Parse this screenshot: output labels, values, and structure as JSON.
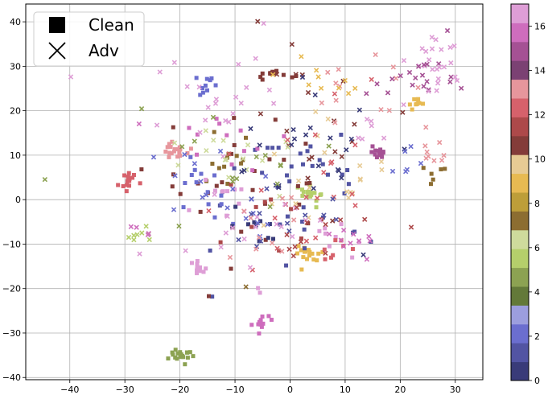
{
  "chart_data": {
    "type": "scatter",
    "title": "",
    "xlabel": "",
    "ylabel": "",
    "xlim": [
      -48,
      35
    ],
    "ylim": [
      -40.5,
      44
    ],
    "xticks": [
      -40,
      -30,
      -20,
      -10,
      0,
      10,
      20,
      30
    ],
    "yticks": [
      -40,
      -30,
      -20,
      -10,
      0,
      10,
      20,
      30,
      40
    ],
    "grid": true,
    "legend": {
      "placement": "top-left",
      "entries": [
        {
          "label": "Clean",
          "marker": "square"
        },
        {
          "label": "Adv",
          "marker": "x"
        }
      ]
    },
    "colorbar": {
      "cmap": "tab20b",
      "range": [
        0,
        17
      ],
      "ticks": [
        0,
        2,
        4,
        6,
        8,
        10,
        12,
        14,
        16
      ],
      "colors": [
        "#393b79",
        "#5254a3",
        "#6b6ecf",
        "#9c9ede",
        "#637939",
        "#8ca252",
        "#b5cf6b",
        "#cedb9c",
        "#8c6d31",
        "#bd9e39",
        "#e7ba52",
        "#e7cb94",
        "#843c39",
        "#ad494a",
        "#d6616b",
        "#e7969c",
        "#7b4173",
        "#a55194",
        "#ce6dbd",
        "#de9ed6"
      ]
    },
    "clusters": [
      {
        "marker": "square",
        "cls": 12.5,
        "cx": -29.5,
        "cy": 4.5,
        "sx": 0.8,
        "sy": 1.3,
        "n": 16
      },
      {
        "marker": "square",
        "cls": 4.5,
        "cx": -19.5,
        "cy": -35,
        "sx": 1.0,
        "sy": 0.8,
        "n": 20
      },
      {
        "marker": "square",
        "cls": 16.5,
        "cx": -16.5,
        "cy": -15.5,
        "sx": 1.4,
        "sy": 0.8,
        "n": 12
      },
      {
        "marker": "square",
        "cls": 15.5,
        "cx": -5.5,
        "cy": -27.5,
        "sx": 0.9,
        "sy": 1.4,
        "n": 12
      },
      {
        "marker": "square",
        "cls": 16.5,
        "cx": -5.5,
        "cy": -21,
        "sx": 0.2,
        "sy": 1.5,
        "n": 2
      },
      {
        "marker": "square",
        "cls": 13.5,
        "cx": -21,
        "cy": 11,
        "sx": 1.2,
        "sy": 0.9,
        "n": 18
      },
      {
        "marker": "square",
        "cls": 14.5,
        "cx": 16,
        "cy": 11,
        "sx": 0.8,
        "sy": 0.8,
        "n": 14
      },
      {
        "marker": "square",
        "cls": 8.5,
        "cx": 23,
        "cy": 22.5,
        "sx": 0.7,
        "sy": 0.8,
        "n": 10
      },
      {
        "marker": "square",
        "cls": 10.5,
        "cx": -2.5,
        "cy": 28.5,
        "sx": 1.3,
        "sy": 0.8,
        "n": 14
      },
      {
        "marker": "square",
        "cls": 2.5,
        "cx": -15,
        "cy": 25,
        "sx": 1.0,
        "sy": 1.3,
        "n": 10
      },
      {
        "marker": "square",
        "cls": 5.5,
        "cx": 4,
        "cy": 1,
        "sx": 1.2,
        "sy": 1.3,
        "n": 18
      },
      {
        "marker": "square",
        "cls": 8.5,
        "cx": 3,
        "cy": -12,
        "sx": 1.5,
        "sy": 1.2,
        "n": 18
      },
      {
        "marker": "square",
        "cls": 1.5,
        "cx": 1,
        "cy": 1,
        "sx": 8,
        "sy": 8,
        "n": 38
      },
      {
        "marker": "square",
        "cls": 10.5,
        "cx": -8,
        "cy": 3,
        "sx": 8,
        "sy": 8,
        "n": 30
      },
      {
        "marker": "square",
        "cls": 7.5,
        "cx": -11,
        "cy": 9,
        "sx": 2.5,
        "sy": 3,
        "n": 12
      },
      {
        "marker": "square",
        "cls": 2.5,
        "cx": -16,
        "cy": 2,
        "sx": 3,
        "sy": 5,
        "n": 14
      },
      {
        "marker": "square",
        "cls": 15.5,
        "cx": -12,
        "cy": 13,
        "sx": 4,
        "sy": 3,
        "n": 12
      },
      {
        "marker": "square",
        "cls": 17.5,
        "cx": -14,
        "cy": 0,
        "sx": 3,
        "sy": 3,
        "n": 10
      },
      {
        "marker": "square",
        "cls": 0.5,
        "cx": -7,
        "cy": -7,
        "sx": 2.5,
        "sy": 2.5,
        "n": 10
      },
      {
        "marker": "square",
        "cls": 17.5,
        "cx": 8,
        "cy": -8,
        "sx": 3,
        "sy": 3,
        "n": 8
      },
      {
        "marker": "square",
        "cls": 12.5,
        "cx": 7,
        "cy": -11,
        "sx": 3,
        "sy": 2,
        "n": 8
      },
      {
        "marker": "square",
        "cls": 11.5,
        "cx": -5,
        "cy": -6,
        "sx": 5,
        "sy": 4,
        "n": 10
      },
      {
        "marker": "square",
        "cls": 7.5,
        "cx": 26,
        "cy": 6,
        "sx": 2,
        "sy": 2,
        "n": 6
      },
      {
        "marker": "x",
        "cls": 5.5,
        "cx": -27.5,
        "cy": -7.5,
        "sx": 1.2,
        "sy": 0.8,
        "n": 8
      },
      {
        "marker": "x",
        "cls": 15.5,
        "cx": -27.5,
        "cy": -7.5,
        "sx": 1.0,
        "sy": 1.0,
        "n": 4
      },
      {
        "marker": "x",
        "cls": 13.5,
        "cx": 26.5,
        "cy": 10,
        "sx": 1.2,
        "sy": 1.2,
        "n": 8
      },
      {
        "marker": "x",
        "cls": 16.5,
        "cx": 26,
        "cy": 31,
        "sx": 3,
        "sy": 3,
        "n": 16
      },
      {
        "marker": "x",
        "cls": 14.5,
        "cx": 27,
        "cy": 28,
        "sx": 3,
        "sy": 4,
        "n": 14
      },
      {
        "marker": "x",
        "cls": 17.5,
        "cx": 24,
        "cy": 26,
        "sx": 3,
        "sy": 3,
        "n": 8
      },
      {
        "marker": "x",
        "cls": 10.5,
        "cx": 2,
        "cy": 22,
        "sx": 8,
        "sy": 8,
        "n": 20
      },
      {
        "marker": "x",
        "cls": 13.5,
        "cx": 10,
        "cy": 25,
        "sx": 6,
        "sy": 5,
        "n": 14
      },
      {
        "marker": "x",
        "cls": 8.5,
        "cx": 8,
        "cy": 28,
        "sx": 5,
        "sy": 3,
        "n": 10
      },
      {
        "marker": "x",
        "cls": 16.5,
        "cx": -12,
        "cy": 22,
        "sx": 8,
        "sy": 8,
        "n": 24
      },
      {
        "marker": "x",
        "cls": 6.5,
        "cx": -10,
        "cy": 12,
        "sx": 6,
        "sy": 5,
        "n": 16
      },
      {
        "marker": "x",
        "cls": 0.5,
        "cx": 3,
        "cy": 10,
        "sx": 7,
        "sy": 7,
        "n": 26
      },
      {
        "marker": "x",
        "cls": 9.5,
        "cx": 6,
        "cy": 5,
        "sx": 7,
        "sy": 7,
        "n": 20
      },
      {
        "marker": "x",
        "cls": 12.5,
        "cx": 0,
        "cy": 4,
        "sx": 8,
        "sy": 9,
        "n": 22
      },
      {
        "marker": "x",
        "cls": 2.5,
        "cx": -12,
        "cy": 2,
        "sx": 6,
        "sy": 6,
        "n": 18
      },
      {
        "marker": "x",
        "cls": 17.5,
        "cx": -10,
        "cy": -3,
        "sx": 7,
        "sy": 6,
        "n": 18
      },
      {
        "marker": "x",
        "cls": 4.5,
        "cx": -6,
        "cy": 6,
        "sx": 7,
        "sy": 6,
        "n": 14
      },
      {
        "marker": "x",
        "cls": 1.5,
        "cx": -2,
        "cy": -4,
        "sx": 5,
        "sy": 4,
        "n": 12
      },
      {
        "marker": "x",
        "cls": 11.5,
        "cx": 6,
        "cy": -6,
        "sx": 5,
        "sy": 4,
        "n": 12
      },
      {
        "marker": "x",
        "cls": 15.5,
        "cx": 11,
        "cy": -9,
        "sx": 3,
        "sy": 3,
        "n": 10
      },
      {
        "marker": "x",
        "cls": 13.5,
        "cx": -5,
        "cy": -5,
        "sx": 4,
        "sy": 4,
        "n": 10
      },
      {
        "marker": "x",
        "cls": 14.5,
        "cx": 18,
        "cy": 26,
        "sx": 3,
        "sy": 2,
        "n": 6
      },
      {
        "marker": "x",
        "cls": 16.5,
        "cx": 16,
        "cy": 18,
        "sx": 3,
        "sy": 3,
        "n": 6
      },
      {
        "marker": "x",
        "cls": 2.5,
        "cx": 22,
        "cy": 8,
        "sx": 3,
        "sy": 4,
        "n": 6
      },
      {
        "marker": "x",
        "cls": 4.5,
        "cx": -44.5,
        "cy": 4.5,
        "sx": 0.1,
        "sy": 0.1,
        "n": 1
      },
      {
        "marker": "x",
        "cls": 4.5,
        "cx": -27,
        "cy": 20.5,
        "sx": 0.1,
        "sy": 0.1,
        "n": 1
      },
      {
        "marker": "x",
        "cls": 15.5,
        "cx": -27.5,
        "cy": 17,
        "sx": 0.1,
        "sy": 0.1,
        "n": 1
      },
      {
        "marker": "x",
        "cls": 7.5,
        "cx": -8,
        "cy": -20,
        "sx": 0.3,
        "sy": 0.3,
        "n": 1
      }
    ]
  }
}
